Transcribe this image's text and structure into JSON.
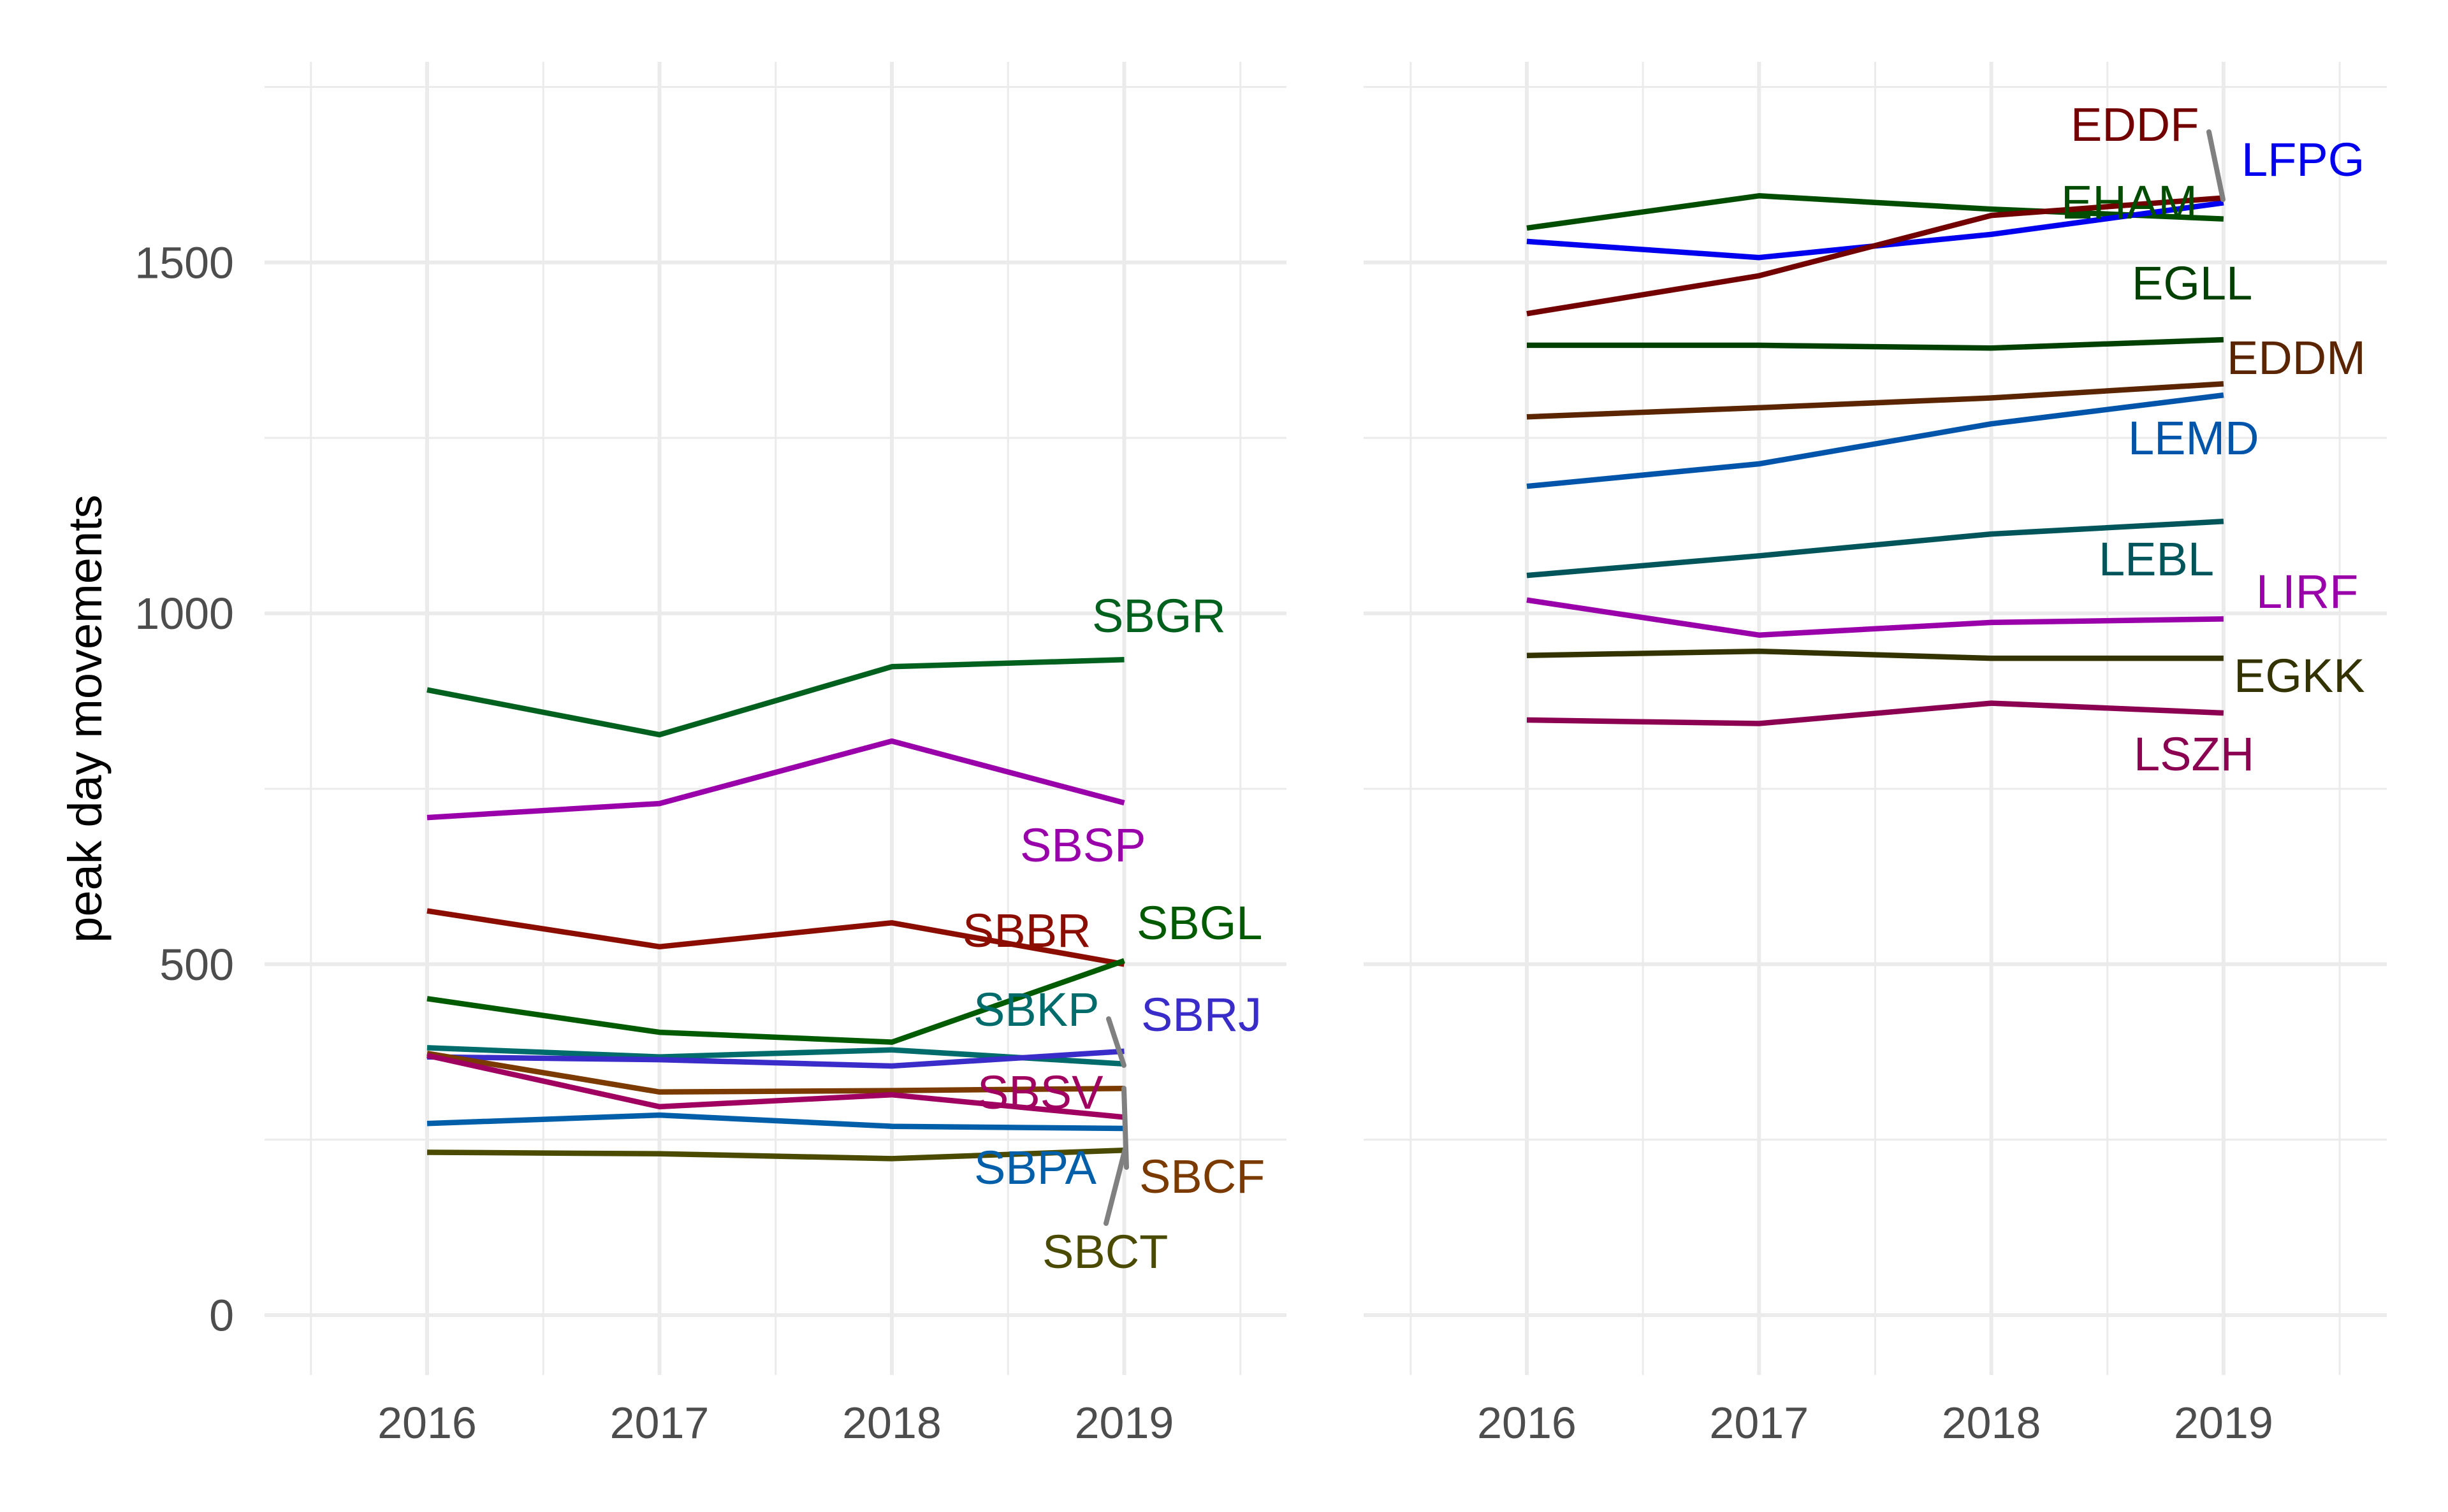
{
  "chart_data": {
    "type": "line",
    "title": "",
    "ylabel": "peak day movements",
    "xlabel": "",
    "x": [
      2016,
      2017,
      2018,
      2019
    ],
    "x_tick_labels": [
      "2016",
      "2017",
      "2018",
      "2019"
    ],
    "y_tick_labels": [
      "0",
      "500",
      "1000",
      "1500"
    ],
    "y_ticks": [
      0,
      500,
      1000,
      1500
    ],
    "ylim": [
      -70,
      1790
    ],
    "xlim": [
      2015.5,
      2019.5
    ],
    "grid": true,
    "legend": "none",
    "panels": [
      {
        "name": "left",
        "series": [
          {
            "name": "SBGR",
            "color": "#00601e",
            "values": [
              891,
              827,
              924,
              934
            ]
          },
          {
            "name": "SBSP",
            "color": "#9900aa",
            "values": [
              709,
              729,
              818,
              730
            ]
          },
          {
            "name": "SBBR",
            "color": "#8b0d00",
            "values": [
              576,
              525,
              559,
              500
            ]
          },
          {
            "name": "SBGL",
            "color": "#005a00",
            "values": [
              451,
              403,
              389,
              505
            ]
          },
          {
            "name": "SBKP",
            "color": "#006b6b",
            "values": [
              381,
              368,
              378,
              358
            ]
          },
          {
            "name": "SBRJ",
            "color": "#3a2cc8",
            "values": [
              368,
              364,
              355,
              376
            ]
          },
          {
            "name": "SBCF",
            "color": "#7a3a00",
            "values": [
              373,
              318,
              320,
              323
            ]
          },
          {
            "name": "SBSV",
            "color": "#a0005f",
            "values": [
              370,
              297,
              314,
              282
            ]
          },
          {
            "name": "SBPA",
            "color": "#005fa8",
            "values": [
              273,
              285,
              269,
              266
            ]
          },
          {
            "name": "SBCT",
            "color": "#4a4a00",
            "values": [
              232,
              230,
              223,
              235
            ]
          }
        ]
      },
      {
        "name": "right",
        "series": [
          {
            "name": "EHAM",
            "color": "#004d00",
            "values": [
              1549,
              1595,
              1576,
              1562
            ]
          },
          {
            "name": "LFPG",
            "color": "#0000ee",
            "values": [
              1530,
              1507,
              1540,
              1585
            ]
          },
          {
            "name": "EDDF",
            "color": "#730000",
            "values": [
              1427,
              1481,
              1567,
              1592
            ]
          },
          {
            "name": "EGLL",
            "color": "#004000",
            "values": [
              1382,
              1382,
              1378,
              1390
            ]
          },
          {
            "name": "EDDM",
            "color": "#5a2500",
            "values": [
              1280,
              1293,
              1307,
              1327
            ]
          },
          {
            "name": "LEMD",
            "color": "#0055aa",
            "values": [
              1181,
              1213,
              1270,
              1311
            ]
          },
          {
            "name": "LEBL",
            "color": "#00555a",
            "values": [
              1054,
              1082,
              1113,
              1131
            ]
          },
          {
            "name": "LIRF",
            "color": "#9900aa",
            "values": [
              1019,
              969,
              987,
              992
            ]
          },
          {
            "name": "EGKK",
            "color": "#333300",
            "values": [
              940,
              946,
              936,
              936
            ]
          },
          {
            "name": "LSZH",
            "color": "#8b0050",
            "values": [
              848,
              843,
              872,
              858
            ]
          }
        ]
      }
    ]
  }
}
